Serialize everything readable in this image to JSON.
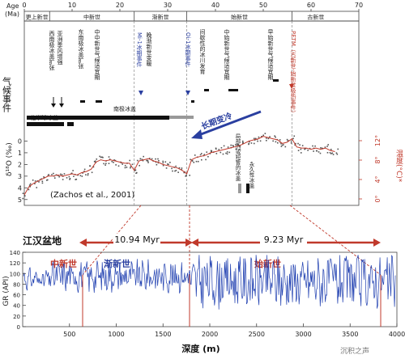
{
  "top_panel": {
    "age_label": "Age",
    "age_unit": "(Ma)",
    "age_ticks": [
      "0",
      "10",
      "20",
      "30",
      "40",
      "50",
      "60",
      "70"
    ],
    "epochs": [
      {
        "label": "更上新世",
        "from": 0,
        "to": 5.3
      },
      {
        "label": "中新世",
        "from": 5.3,
        "to": 23
      },
      {
        "label": "渐新世",
        "from": 23,
        "to": 34
      },
      {
        "label": "始新世",
        "from": 34,
        "to": 56
      },
      {
        "label": "古新世",
        "from": 56,
        "to": 66
      }
    ],
    "row_title_left": "气候事件",
    "row_title_right": "",
    "events": [
      {
        "label": "西南极冰盖扩张",
        "age": 14.5,
        "color": "#222222"
      },
      {
        "label": "亚洲季风增强",
        "age": 12.5,
        "color": "#222222"
      },
      {
        "label": "东南极冰盖扩张",
        "age": 10.5,
        "color": "#222222"
      },
      {
        "label": "中中新世气候适宜期",
        "age": 16,
        "color": "#222222"
      },
      {
        "label": "Mi-1冰期事件",
        "age": 23,
        "color": "#2a3fa0"
      },
      {
        "label": "晚渐新世变暖",
        "age": 26,
        "color": "#222222"
      },
      {
        "label": "Oi-1冰期事件",
        "age": 34,
        "color": "#2a3fa0"
      },
      {
        "label": "间歇性的冰川发育",
        "age": 38.5,
        "color": "#222222"
      },
      {
        "label": "中始新世气候适宜期",
        "age": 41.5,
        "color": "#222222"
      },
      {
        "label": "早始新世气候适宜期",
        "age": 51.5,
        "color": "#222222"
      },
      {
        "label": "PETM（古新世-始新世极热事件）",
        "age": 56,
        "color": "#c0392b"
      }
    ],
    "ice_labels": {
      "north": "北半球冰盖",
      "south": "南极冰盖"
    },
    "long_term_cooling": "长期变冷",
    "ice_legend": [
      "局部的或短暂的冰盖",
      "永久性冰盖"
    ],
    "citation": "(Zachos et al., 2001)",
    "y_label": "δ¹⁸O (‰)",
    "y_ticks": [
      "0",
      "1",
      "2",
      "3",
      "4",
      "5"
    ],
    "temp_label": "温度(°C)*",
    "temp_ticks": [
      "0°",
      "4°",
      "8°",
      "12°"
    ]
  },
  "bottom_panel": {
    "basin": "江汉盆地",
    "epochs": [
      {
        "label": "中新世",
        "color": "#c0392b"
      },
      {
        "label": "渐新世",
        "color": "#2a3fa0"
      },
      {
        "label": "始新世",
        "color": "#c0392b"
      }
    ],
    "durations": [
      "10.94 Myr",
      "9.23 Myr"
    ],
    "y_label": "GR (API)",
    "x_label": "深度 (m)",
    "x_ticks": [
      "500",
      "1000",
      "1500",
      "2000",
      "2500",
      "3000",
      "3500",
      "4000"
    ],
    "y_ticks": [
      "0",
      "20",
      "40",
      "60",
      "80",
      "100",
      "120",
      "140"
    ],
    "watermark": "沉积之声"
  },
  "chart_data": [
    {
      "type": "line",
      "title": "",
      "xlabel": "Age (Ma)",
      "ylabel": "δ¹⁸O (‰)",
      "xlim": [
        0,
        70
      ],
      "ylim": [
        5.5,
        -1
      ],
      "y2label": "温度(°C)*",
      "y2ticks": [
        0,
        4,
        8,
        12
      ],
      "series": [
        {
          "x": [
            0,
            1,
            2,
            3,
            4,
            5,
            6,
            7,
            8,
            9,
            10,
            11,
            12,
            13,
            14,
            15,
            16,
            17,
            18,
            19,
            20,
            21,
            22,
            23,
            24,
            25,
            26,
            27,
            28,
            29,
            30,
            31,
            32,
            33,
            34,
            35,
            36,
            37,
            38,
            39,
            40,
            41,
            42,
            43,
            44,
            45,
            46,
            47,
            48,
            49,
            50,
            51,
            52,
            53,
            54,
            55,
            56,
            57,
            58,
            59,
            60,
            61,
            62,
            63,
            64,
            65
          ],
          "y": [
            4.6,
            3.9,
            3.6,
            3.4,
            3.2,
            3.0,
            3.0,
            2.9,
            3.0,
            2.9,
            2.8,
            2.9,
            2.7,
            2.6,
            2.4,
            1.8,
            1.6,
            1.7,
            1.6,
            1.7,
            1.8,
            1.9,
            1.9,
            2.5,
            1.7,
            1.6,
            1.5,
            1.7,
            1.8,
            2.0,
            2.1,
            2.2,
            2.3,
            2.5,
            2.8,
            1.6,
            1.4,
            1.3,
            1.2,
            1.0,
            0.9,
            0.8,
            0.7,
            0.6,
            0.5,
            0.4,
            0.2,
            0.0,
            -0.1,
            -0.2,
            -0.4,
            -0.3,
            -0.2,
            -0.1,
            0.2,
            0.1,
            -0.2,
            0.5,
            0.6,
            0.6,
            0.7,
            0.6,
            0.7,
            0.6,
            0.8,
            0.9
          ]
        }
      ],
      "events_ma": {
        "Mi-1": 23,
        "Oi-1": 34,
        "PETM": 56
      }
    },
    {
      "type": "line",
      "title": "江汉盆地",
      "xlabel": "深度 (m)",
      "ylabel": "GR (API)",
      "xlim": [
        0,
        4000
      ],
      "ylim": [
        0,
        140
      ],
      "boundaries_m": [
        680,
        1850,
        2950
      ],
      "series": [
        {
          "name": "GR",
          "note": "high-frequency gamma-ray log, oscillating roughly 40–130 API"
        }
      ]
    }
  ]
}
